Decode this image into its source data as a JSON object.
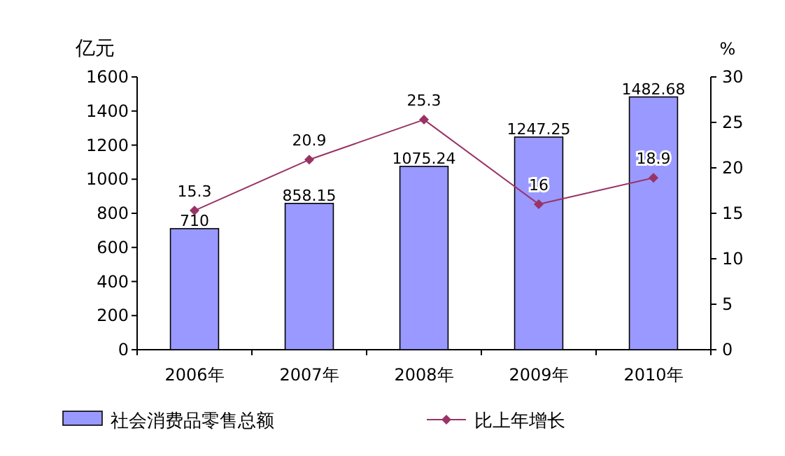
{
  "chart_data": {
    "type": "bar",
    "categories": [
      "2006年",
      "2007年",
      "2008年",
      "2009年",
      "2010年"
    ],
    "series": [
      {
        "name": "社会消费品零售总额",
        "color": "#9999ff",
        "values": [
          710,
          858.15,
          1075.24,
          1247.25,
          1482.68
        ]
      },
      {
        "name": "比上年增长",
        "type": "line",
        "axis": "y2",
        "color": "#993366",
        "values": [
          15.3,
          20.9,
          25.3,
          16,
          18.9
        ]
      }
    ],
    "ylabel": "亿元",
    "y2label": "%",
    "ylim": [
      0,
      1600
    ],
    "yticks": [
      0,
      200,
      400,
      600,
      800,
      1000,
      1200,
      1400,
      1600
    ],
    "y2lim": [
      0,
      30
    ],
    "y2ticks": [
      0,
      5,
      10,
      15,
      20,
      25,
      30
    ],
    "legend": "bottom",
    "marker": "diamond",
    "data_labels": true,
    "grid": false
  }
}
